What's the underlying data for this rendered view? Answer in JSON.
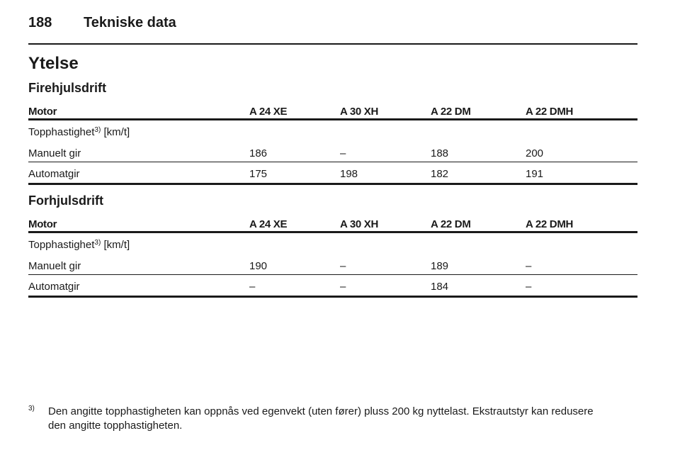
{
  "header": {
    "page_number": "188",
    "title": "Tekniske data"
  },
  "section": {
    "title": "Ytelse"
  },
  "tables": [
    {
      "title": "Firehjulsdrift",
      "columns": [
        "Motor",
        "A 24 XE",
        "A 30 XH",
        "A 22 DM",
        "A 22 DMH"
      ],
      "speed_label": {
        "text": "Topphastighet",
        "sup": "3)",
        "unit": "[km/t]"
      },
      "rows": [
        [
          "Manuelt gir",
          186,
          "–",
          188,
          200
        ],
        [
          "Automatgir",
          175,
          198,
          182,
          191
        ]
      ]
    },
    {
      "title": "Forhjulsdrift",
      "columns": [
        "Motor",
        "A 24 XE",
        "A 30 XH",
        "A 22 DM",
        "A 22 DMH"
      ],
      "speed_label": {
        "text": "Topphastighet",
        "sup": "3)",
        "unit": "[km/t]"
      },
      "rows": [
        [
          "Manuelt gir",
          190,
          "–",
          189,
          "–"
        ],
        [
          "Automatgir",
          "–",
          "–",
          184,
          "–"
        ]
      ]
    }
  ],
  "footnote": {
    "mark": "3)",
    "lines": [
      "Den angitte topphastigheten kan oppnås ved egenvekt (uten fører) pluss 200 kg nyttelast. Ekstrautstyr kan redusere",
      "den angitte topphastigheten."
    ]
  }
}
